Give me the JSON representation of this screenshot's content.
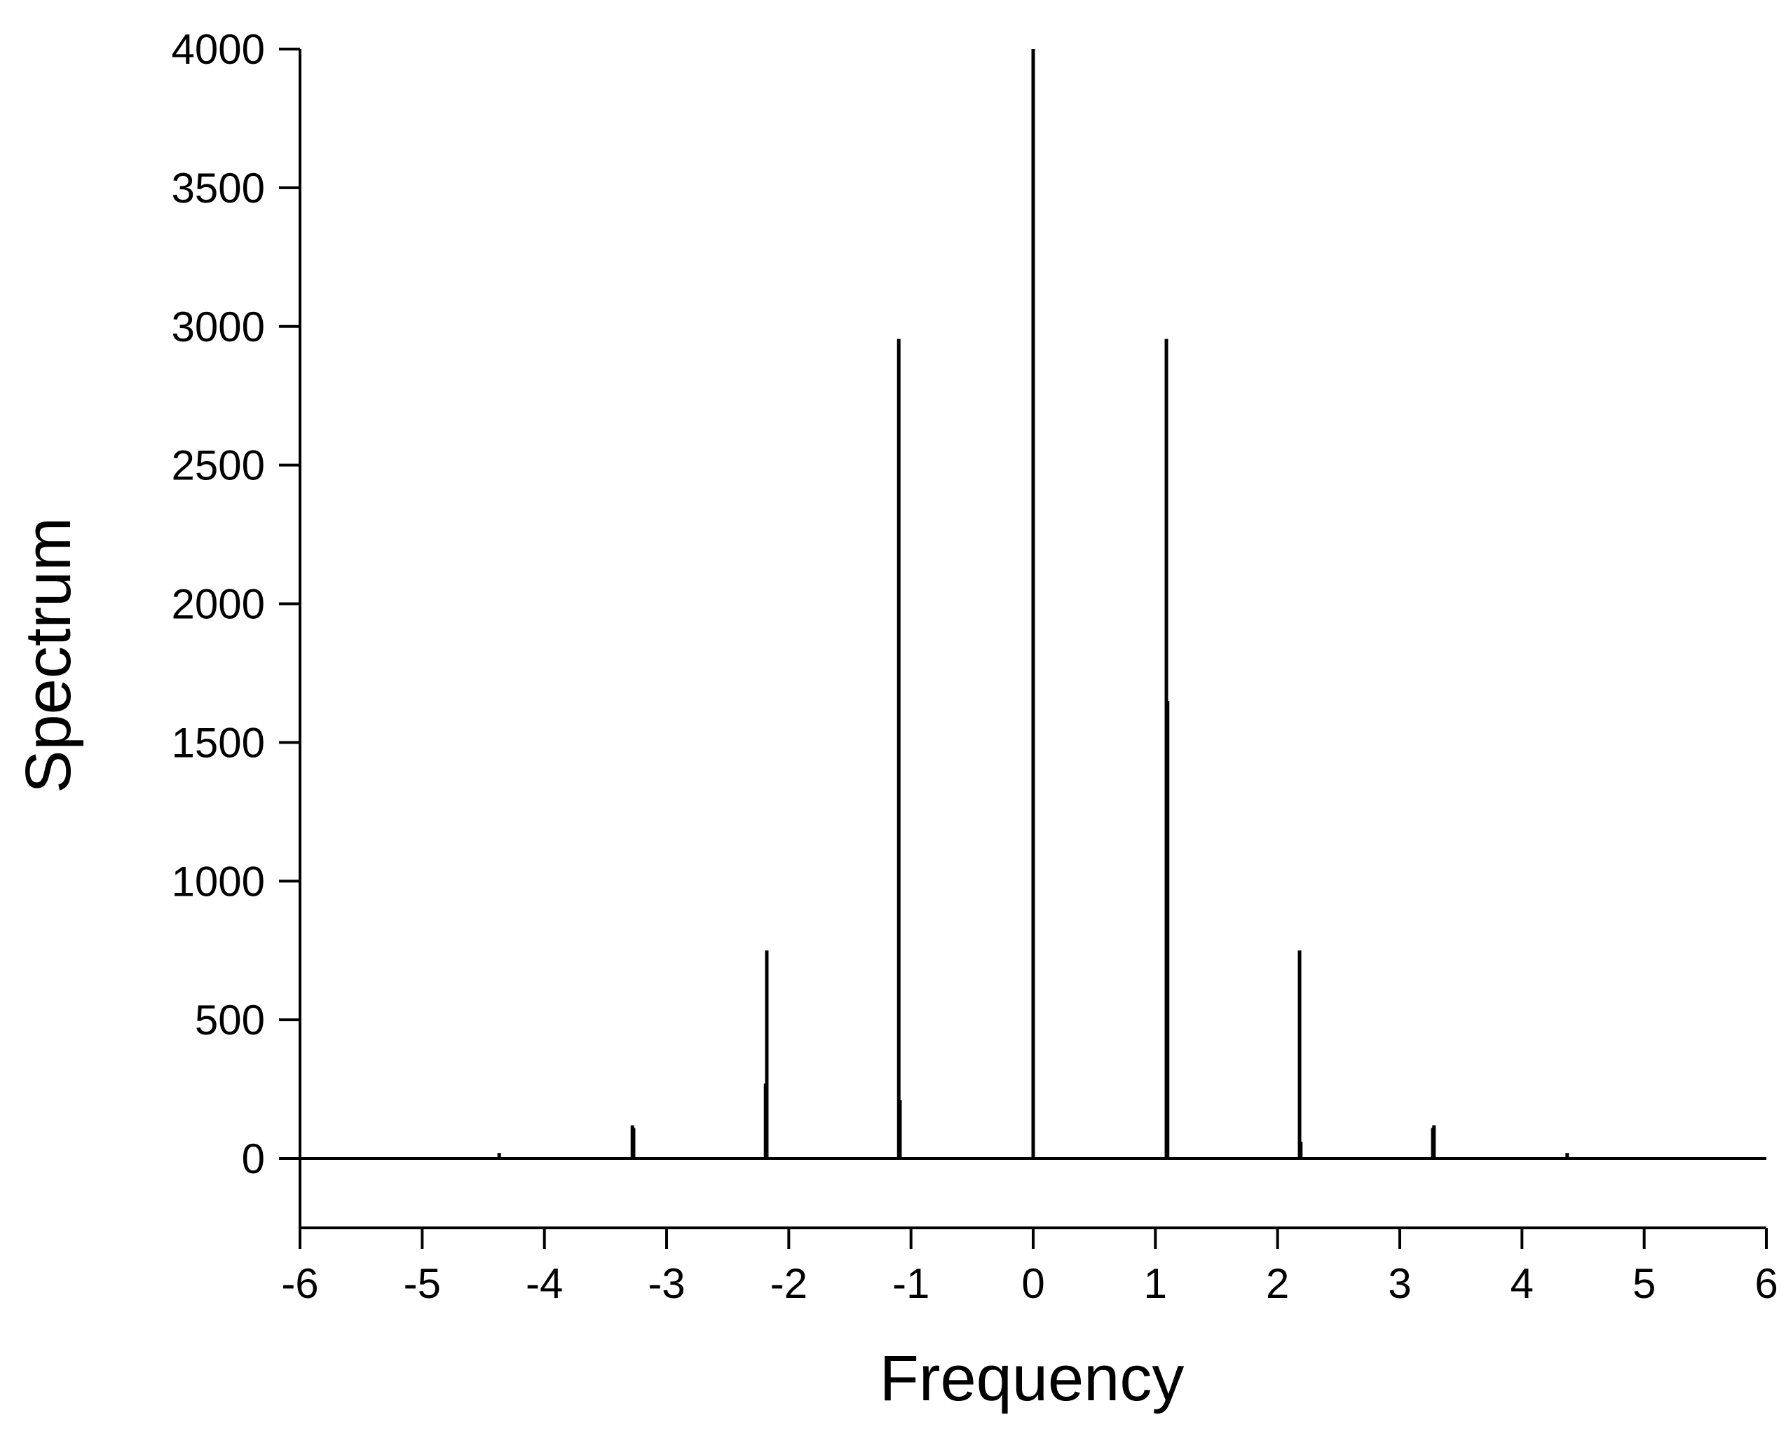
{
  "chart_data": {
    "type": "bar",
    "title": "",
    "xlabel": "Frequency",
    "ylabel": "Spectrum",
    "xlim": [
      -6,
      6
    ],
    "ylim": [
      -250,
      4000
    ],
    "xticks": [
      -6,
      -5,
      -4,
      -3,
      -2,
      -1,
      0,
      1,
      2,
      3,
      4,
      5,
      6
    ],
    "xtick_labels": [
      "-6",
      "-5",
      "-4",
      "-3",
      "-2",
      "-1",
      "0",
      "1",
      "2",
      "3",
      "4",
      "5",
      "6"
    ],
    "yticks": [
      0,
      500,
      1000,
      1500,
      2000,
      2500,
      3000,
      3500,
      4000
    ],
    "ytick_labels": [
      "0",
      "500",
      "1000",
      "1500",
      "2000",
      "2500",
      "3000",
      "3500",
      "4000"
    ],
    "grid": false,
    "legend": "none",
    "series": [
      {
        "x": [
          -5.46,
          -4.37,
          -3.28,
          -3.27,
          -2.19,
          -2.18,
          -1.1,
          -1.09,
          0,
          1.09,
          1.1,
          2.18,
          2.19,
          3.27,
          3.28,
          4.37,
          5.46
        ],
        "values": [
          5,
          20,
          120,
          110,
          270,
          750,
          2955,
          210,
          4000,
          2955,
          1650,
          750,
          60,
          110,
          120,
          20,
          5
        ]
      }
    ]
  }
}
